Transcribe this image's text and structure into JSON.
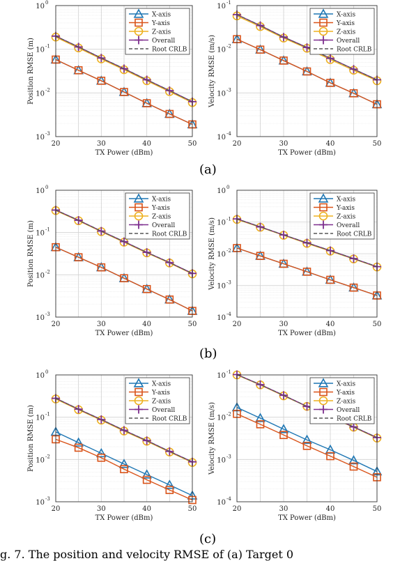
{
  "captions": {
    "a": "(a)",
    "b": "(b)",
    "c": "(c)",
    "figure_caption": "g. 7. The position and velocity RMSE of (a) Target 0"
  },
  "legend_entries": [
    "X-axis",
    "Y-axis",
    "Z-axis",
    "Overall",
    "Root CRLB"
  ],
  "colors": {
    "x": "#1f77b4",
    "y": "#d95319",
    "z": "#edb120",
    "overall": "#7e2f8e",
    "crlb": "#555555"
  },
  "chart_data": [
    {
      "id": "a-pos",
      "type": "line",
      "xlabel": "TX Power (dBm)",
      "ylabel": "Position RMSE (m)",
      "x": [
        20,
        25,
        30,
        35,
        40,
        45,
        50
      ],
      "xlim": [
        20,
        50
      ],
      "ylim_exp": [
        -3,
        0
      ],
      "log_y": true,
      "legend_position": "top-right",
      "grid": true,
      "series": [
        {
          "name": "X-axis",
          "values": [
            0.058,
            0.033,
            0.019,
            0.0105,
            0.0058,
            0.0033,
            0.0019
          ]
        },
        {
          "name": "Y-axis",
          "values": [
            0.058,
            0.033,
            0.019,
            0.0105,
            0.0058,
            0.0033,
            0.0019
          ]
        },
        {
          "name": "Z-axis",
          "values": [
            0.19,
            0.107,
            0.06,
            0.034,
            0.019,
            0.0107,
            0.006
          ]
        },
        {
          "name": "Overall",
          "values": [
            0.2,
            0.113,
            0.063,
            0.036,
            0.02,
            0.0113,
            0.0063
          ]
        },
        {
          "name": "Root CRLB",
          "values": [
            0.2,
            0.113,
            0.063,
            0.036,
            0.02,
            0.0113,
            0.0063
          ]
        }
      ]
    },
    {
      "id": "a-vel",
      "type": "line",
      "xlabel": "TX Power (dBm)",
      "ylabel": "Velocity RMSE (m/s)",
      "x": [
        20,
        25,
        30,
        35,
        40,
        45,
        50
      ],
      "xlim": [
        20,
        50
      ],
      "ylim_exp": [
        -4,
        -1
      ],
      "log_y": true,
      "legend_position": "top-right",
      "grid": true,
      "series": [
        {
          "name": "X-axis",
          "values": [
            0.017,
            0.0098,
            0.0055,
            0.0031,
            0.0017,
            0.00098,
            0.00055
          ]
        },
        {
          "name": "Y-axis",
          "values": [
            0.017,
            0.0098,
            0.0055,
            0.0031,
            0.0017,
            0.00098,
            0.00055
          ]
        },
        {
          "name": "Z-axis",
          "values": [
            0.058,
            0.033,
            0.018,
            0.0105,
            0.0058,
            0.0033,
            0.0019
          ]
        },
        {
          "name": "Overall",
          "values": [
            0.062,
            0.035,
            0.019,
            0.011,
            0.0062,
            0.0035,
            0.002
          ]
        },
        {
          "name": "Root CRLB",
          "values": [
            0.062,
            0.035,
            0.019,
            0.011,
            0.0062,
            0.0035,
            0.002
          ]
        }
      ]
    },
    {
      "id": "b-pos",
      "type": "line",
      "xlabel": "TX Power (dBm)",
      "ylabel": "Position RMSE (m)",
      "x": [
        20,
        25,
        30,
        35,
        40,
        45,
        50
      ],
      "xlim": [
        20,
        50
      ],
      "ylim_exp": [
        -3,
        0
      ],
      "log_y": true,
      "legend_position": "top-right",
      "grid": true,
      "series": [
        {
          "name": "X-axis",
          "values": [
            0.045,
            0.026,
            0.015,
            0.0083,
            0.0046,
            0.0026,
            0.0014
          ]
        },
        {
          "name": "Y-axis",
          "values": [
            0.045,
            0.026,
            0.015,
            0.0083,
            0.0046,
            0.0026,
            0.0014
          ]
        },
        {
          "name": "Z-axis",
          "values": [
            0.33,
            0.19,
            0.105,
            0.059,
            0.033,
            0.019,
            0.0105
          ]
        },
        {
          "name": "Overall",
          "values": [
            0.34,
            0.195,
            0.108,
            0.061,
            0.034,
            0.0195,
            0.0108
          ]
        },
        {
          "name": "Root CRLB",
          "values": [
            0.34,
            0.195,
            0.108,
            0.061,
            0.034,
            0.0195,
            0.0108
          ]
        }
      ]
    },
    {
      "id": "b-vel",
      "type": "line",
      "xlabel": "TX Power (dBm)",
      "ylabel": "Velocity RMSE (m/s)",
      "x": [
        20,
        25,
        30,
        35,
        40,
        45,
        50
      ],
      "xlim": [
        20,
        50
      ],
      "ylim_exp": [
        -4,
        0
      ],
      "log_y": true,
      "legend_position": "top-right",
      "grid": true,
      "series": [
        {
          "name": "X-axis",
          "values": [
            0.015,
            0.0085,
            0.0048,
            0.0027,
            0.0015,
            0.00085,
            0.00048
          ]
        },
        {
          "name": "Y-axis",
          "values": [
            0.015,
            0.0085,
            0.0048,
            0.0027,
            0.0015,
            0.00085,
            0.00048
          ]
        },
        {
          "name": "Z-axis",
          "values": [
            0.12,
            0.068,
            0.038,
            0.021,
            0.012,
            0.0068,
            0.0038
          ]
        },
        {
          "name": "Overall",
          "values": [
            0.125,
            0.07,
            0.039,
            0.022,
            0.0125,
            0.007,
            0.0039
          ]
        },
        {
          "name": "Root CRLB",
          "values": [
            0.125,
            0.07,
            0.039,
            0.022,
            0.0125,
            0.007,
            0.0039
          ]
        }
      ]
    },
    {
      "id": "c-pos",
      "type": "line",
      "xlabel": "TX Power (dBm)",
      "ylabel": "Position RMSE (m)",
      "x": [
        20,
        25,
        30,
        35,
        40,
        45,
        50
      ],
      "xlim": [
        20,
        50
      ],
      "ylim_exp": [
        -3,
        0
      ],
      "log_y": true,
      "legend_position": "top-right",
      "grid": true,
      "series": [
        {
          "name": "X-axis",
          "values": [
            0.045,
            0.025,
            0.014,
            0.0078,
            0.0044,
            0.0025,
            0.0014
          ]
        },
        {
          "name": "Y-axis",
          "values": [
            0.03,
            0.019,
            0.011,
            0.0059,
            0.0033,
            0.0019,
            0.0011
          ]
        },
        {
          "name": "Z-axis",
          "values": [
            0.27,
            0.15,
            0.085,
            0.047,
            0.027,
            0.015,
            0.0085
          ]
        },
        {
          "name": "Overall",
          "values": [
            0.28,
            0.155,
            0.088,
            0.049,
            0.028,
            0.0155,
            0.0088
          ]
        },
        {
          "name": "Root CRLB",
          "values": [
            0.28,
            0.155,
            0.088,
            0.049,
            0.028,
            0.0155,
            0.0088
          ]
        }
      ]
    },
    {
      "id": "c-vel",
      "type": "line",
      "xlabel": "TX Power (dBm)",
      "ylabel": "Velocity RMSE (m/s)",
      "x": [
        20,
        25,
        30,
        35,
        40,
        45,
        50
      ],
      "xlim": [
        20,
        50
      ],
      "ylim_exp": [
        -4,
        -1
      ],
      "log_y": true,
      "legend_position": "top-right",
      "grid": true,
      "series": [
        {
          "name": "X-axis",
          "values": [
            0.017,
            0.0095,
            0.0052,
            0.0029,
            0.0017,
            0.00095,
            0.00052
          ]
        },
        {
          "name": "Y-axis",
          "values": [
            0.012,
            0.0068,
            0.0038,
            0.0021,
            0.0012,
            0.00068,
            0.00038
          ]
        },
        {
          "name": "Z-axis",
          "values": [
            0.1,
            0.058,
            0.032,
            0.018,
            0.01,
            0.0058,
            0.0032
          ]
        },
        {
          "name": "Overall",
          "values": [
            0.102,
            0.059,
            0.033,
            0.018,
            0.0102,
            0.0059,
            0.0033
          ]
        },
        {
          "name": "Root CRLB",
          "values": [
            0.102,
            0.059,
            0.033,
            0.018,
            0.0102,
            0.0059,
            0.0033
          ]
        }
      ]
    }
  ]
}
